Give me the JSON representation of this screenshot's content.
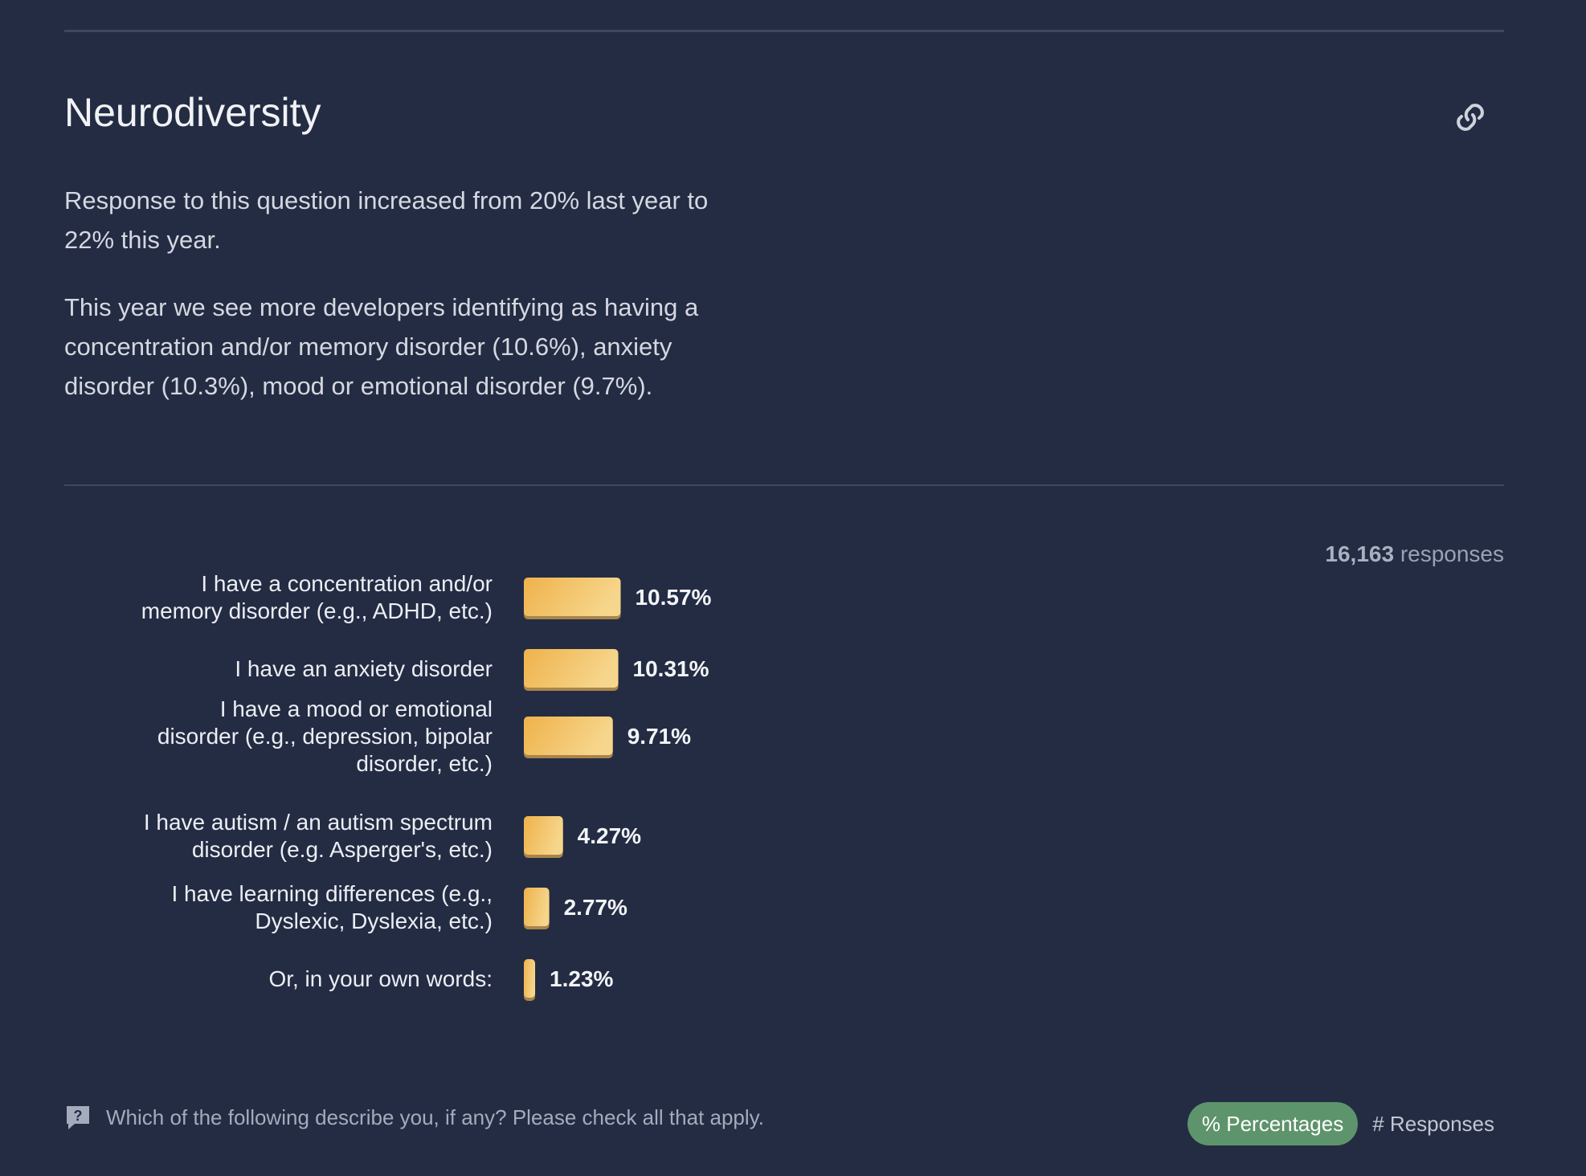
{
  "section": {
    "title": "Neurodiversity",
    "paragraphs": [
      "Response to this question increased from 20% last year to 22% this year.",
      "This year we see more developers identifying as having a concentration and/or memory disorder (10.6%), anxiety disorder (10.3%), mood or emotional disorder (9.7%)."
    ],
    "link_icon": "link-icon"
  },
  "responses": {
    "count": "16,163",
    "label": "responses"
  },
  "chart_data": {
    "type": "bar",
    "orientation": "horizontal",
    "categories": [
      [
        "I have a concentration and/or",
        "memory disorder (e.g., ADHD, etc.)"
      ],
      [
        "I have an anxiety disorder"
      ],
      [
        "I have a mood or emotional",
        "disorder (e.g., depression, bipolar",
        "disorder, etc.)"
      ],
      [
        "I have autism / an autism spectrum",
        "disorder (e.g. Asperger's, etc.)"
      ],
      [
        "I have learning differences (e.g.,",
        "Dyslexic, Dyslexia, etc.)"
      ],
      [
        "Or, in your own words:"
      ]
    ],
    "values": [
      10.57,
      10.31,
      9.71,
      4.27,
      2.77,
      1.23
    ],
    "value_labels": [
      "10.57%",
      "10.31%",
      "9.71%",
      "4.27%",
      "2.77%",
      "1.23%"
    ],
    "unit": "%",
    "xlim": [
      0,
      100
    ],
    "bar_color_start": "#efb24b",
    "bar_color_end": "#f6d68c",
    "bar_shadow": "#a9844a",
    "grid": false,
    "legend": "none"
  },
  "footer": {
    "question_icon": "question-icon",
    "question": "Which of the following describe you, if any? Please check all that apply.",
    "toggle": {
      "percentages_label": "% Percentages",
      "responses_label": "# Responses",
      "active": "percentages"
    }
  },
  "colors": {
    "background": "#232c43",
    "divider": "#3c4761",
    "toggle_active": "#5e946b"
  }
}
